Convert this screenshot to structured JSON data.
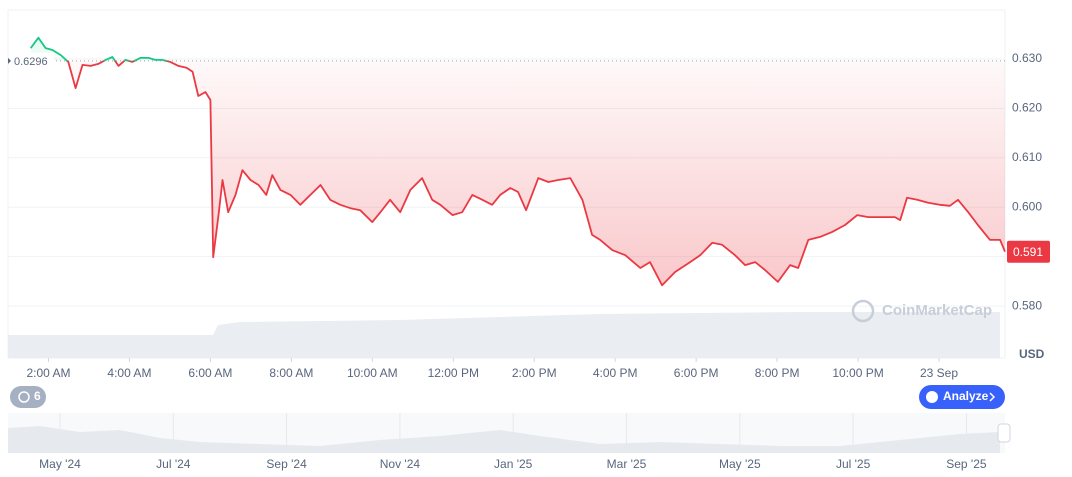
{
  "chart_data": {
    "type": "line",
    "x": [
      1.56,
      1.75,
      1.93,
      2.1,
      2.3,
      2.49,
      2.67,
      2.84,
      3.04,
      3.23,
      3.41,
      3.58,
      3.73,
      3.9,
      4.07,
      4.27,
      4.47,
      4.64,
      4.81,
      5.01,
      5.21,
      5.41,
      5.56,
      5.7,
      5.88,
      6.0,
      6.07,
      6.2,
      6.3,
      6.44,
      6.62,
      6.79,
      6.99,
      7.19,
      7.38,
      7.53,
      7.73,
      7.98,
      8.22,
      8.47,
      8.72,
      8.96,
      9.21,
      9.46,
      9.7,
      10.0,
      10.2,
      10.44,
      10.69,
      10.94,
      11.23,
      11.48,
      11.68,
      11.98,
      12.22,
      12.47,
      12.72,
      12.96,
      13.16,
      13.41,
      13.6,
      13.8,
      14.1,
      14.35,
      14.59,
      14.89,
      15.19,
      15.43,
      15.63,
      15.93,
      16.25,
      16.62,
      16.86,
      17.16,
      17.48,
      17.85,
      18.1,
      18.4,
      18.64,
      18.96,
      19.21,
      19.46,
      19.7,
      20.02,
      20.32,
      20.52,
      20.77,
      21.06,
      21.36,
      21.68,
      21.98,
      22.25,
      22.54,
      22.91,
      23.04,
      23.21,
      23.46,
      23.73,
      24.02,
      24.27,
      24.47,
      24.72,
      24.96,
      25.26,
      25.51,
      25.63
    ],
    "values": [
      0.6322,
      0.6343,
      0.6322,
      0.6318,
      0.6308,
      0.6294,
      0.6241,
      0.6288,
      0.6286,
      0.629,
      0.6298,
      0.6304,
      0.6286,
      0.6298,
      0.6294,
      0.6302,
      0.6302,
      0.6298,
      0.6298,
      0.6294,
      0.6286,
      0.6282,
      0.6274,
      0.6225,
      0.6233,
      0.6217,
      0.5899,
      0.5984,
      0.6055,
      0.599,
      0.6025,
      0.6075,
      0.6055,
      0.6045,
      0.6025,
      0.6065,
      0.6035,
      0.6025,
      0.6005,
      0.6025,
      0.6045,
      0.6015,
      0.6005,
      0.5998,
      0.5994,
      0.597,
      0.599,
      0.6015,
      0.599,
      0.6035,
      0.6059,
      0.6015,
      0.6005,
      0.5984,
      0.599,
      0.6025,
      0.6015,
      0.6005,
      0.6025,
      0.6039,
      0.6031,
      0.5994,
      0.6059,
      0.6051,
      0.6055,
      0.6059,
      0.6015,
      0.5944,
      0.5934,
      0.5913,
      0.5903,
      0.5877,
      0.5889,
      0.5842,
      0.5869,
      0.5889,
      0.5903,
      0.5928,
      0.5924,
      0.5903,
      0.5883,
      0.5889,
      0.5873,
      0.5849,
      0.5883,
      0.5877,
      0.5934,
      0.594,
      0.595,
      0.5964,
      0.5984,
      0.598,
      0.598,
      0.598,
      0.5974,
      0.6019,
      0.6015,
      0.6009,
      0.6005,
      0.6003,
      0.6015,
      0.599,
      0.5964,
      0.5934,
      0.5934,
      0.591
    ],
    "up_color": "#16c784",
    "down_color": "#ea3943",
    "baseline": 0.6296,
    "current_price": 0.591,
    "xlim": [
      1.0,
      25.63
    ],
    "xticks": [
      {
        "value": 2,
        "label": "2:00 AM"
      },
      {
        "value": 4,
        "label": "4:00 AM"
      },
      {
        "value": 6,
        "label": "6:00 AM"
      },
      {
        "value": 8,
        "label": "8:00 AM"
      },
      {
        "value": 10,
        "label": "10:00 AM"
      },
      {
        "value": 12,
        "label": "12:00 PM"
      },
      {
        "value": 14,
        "label": "2:00 PM"
      },
      {
        "value": 16,
        "label": "4:00 PM"
      },
      {
        "value": 18,
        "label": "6:00 PM"
      },
      {
        "value": 20,
        "label": "8:00 PM"
      },
      {
        "value": 22,
        "label": "10:00 PM"
      },
      {
        "value": 24,
        "label": "23 Sep"
      }
    ],
    "ylim": [
      0.5695,
      0.6399
    ],
    "yticks": [
      {
        "value": 0.58,
        "label": "0.580"
      },
      {
        "value": 0.59,
        "label": "0.590"
      },
      {
        "value": 0.6,
        "label": "0.600"
      },
      {
        "value": 0.61,
        "label": "0.610"
      },
      {
        "value": 0.62,
        "label": "0.620"
      },
      {
        "value": 0.63,
        "label": "0.630"
      }
    ],
    "y_axis_unit": "USD",
    "watermark": "CoinMarketCap",
    "navigator_labels": [
      "May '24",
      "Jul '24",
      "Sep '24",
      "Nov '24",
      "Jan '25",
      "Mar '25",
      "May '25",
      "Jul '25",
      "Sep '25"
    ],
    "buttons": {
      "history": "6",
      "analyze": "Analyze"
    }
  }
}
